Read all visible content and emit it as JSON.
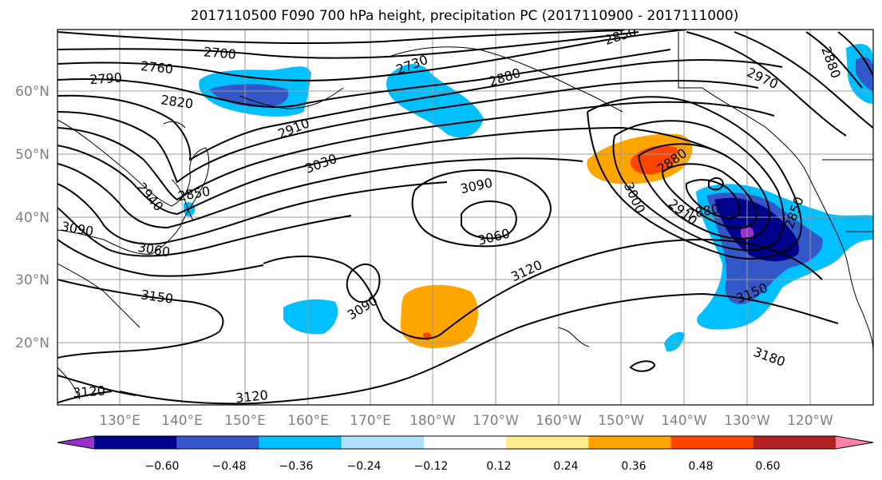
{
  "title": "2017110500 F090 700 hPa height, precipitation PC (2017110900 - 2017111000)",
  "lat_labels": [
    "60°N",
    "50°N",
    "40°N",
    "30°N",
    "20°N"
  ],
  "lon_labels": [
    "130°E",
    "140°E",
    "150°E",
    "160°E",
    "170°E",
    "180°W",
    "170°W",
    "160°W",
    "150°W",
    "140°W",
    "130°W",
    "120°W"
  ],
  "contour_labels": [
    "2700",
    "2760",
    "2790",
    "2820",
    "2730",
    "2850",
    "2880",
    "2970",
    "2910",
    "3030",
    "3090",
    "3060",
    "3000",
    "2910",
    "2880",
    "2850",
    "3120",
    "3150",
    "3090",
    "3150",
    "3180",
    "3120",
    "3120",
    "3090",
    "3060",
    "2940",
    "2850",
    "2880",
    "2880"
  ],
  "colorbar": {
    "ticks": [
      "−0.60",
      "−0.48",
      "−0.36",
      "−0.24",
      "−0.12",
      "0.12",
      "0.24",
      "0.36",
      "0.48",
      "0.60"
    ],
    "colors": [
      "#9932cc",
      "#00008b",
      "#3457c8",
      "#00bfff",
      "#b0e2ff",
      "#ffffff",
      "#ffec8b",
      "#ffa500",
      "#ff4500",
      "#b22222",
      "#ff83a9"
    ]
  }
}
